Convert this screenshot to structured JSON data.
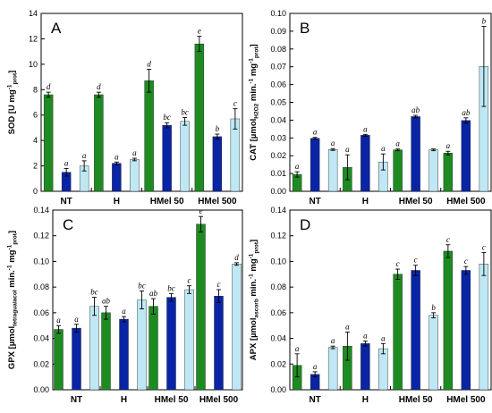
{
  "colors": {
    "series1": "#1e8b22",
    "series2": "#0a24a6",
    "series3": "#bfe8f4"
  },
  "chart_data": [
    {
      "type": "bar",
      "panel": "A",
      "ylabel_parts": [
        {
          "t": "SOD [U mg",
          "s": ""
        },
        {
          "t": "-1",
          "s": "sup"
        },
        {
          "t": "prot",
          "s": "sub"
        },
        {
          "t": "]",
          "s": ""
        }
      ],
      "ylim": [
        0,
        14
      ],
      "yticks": [
        "0",
        "2",
        "4",
        "6",
        "8",
        "10",
        "12",
        "14"
      ],
      "grid": false,
      "categories": [
        "NT",
        "H",
        "HMel 50",
        "HMel 500"
      ],
      "series": [
        {
          "values": [
            7.6,
            7.6,
            8.7,
            11.6
          ],
          "errors": [
            0.2,
            0.2,
            0.9,
            0.6
          ],
          "letters": [
            "d",
            "d",
            "d",
            "e"
          ]
        },
        {
          "values": [
            1.5,
            2.2,
            5.2,
            4.3
          ],
          "errors": [
            0.3,
            0.1,
            0.2,
            0.2
          ],
          "letters": [
            "a",
            "a",
            "bc",
            "b"
          ]
        },
        {
          "values": [
            2.0,
            2.5,
            5.5,
            5.7
          ],
          "errors": [
            0.4,
            0.1,
            0.3,
            0.8
          ],
          "letters": [
            "a",
            "a",
            "bc",
            "c"
          ]
        }
      ]
    },
    {
      "type": "bar",
      "panel": "B",
      "ylabel_parts": [
        {
          "t": "CAT [µmol",
          "s": ""
        },
        {
          "t": "H2O2",
          "s": "sub"
        },
        {
          "t": " min.",
          "s": ""
        },
        {
          "t": "-1",
          "s": "sup"
        },
        {
          "t": " mg",
          "s": ""
        },
        {
          "t": "-1",
          "s": "sup"
        },
        {
          "t": "prot",
          "s": "sub"
        },
        {
          "t": "]",
          "s": ""
        }
      ],
      "ylim": [
        0,
        0.1
      ],
      "yticks": [
        "0.00",
        "0.01",
        "0.02",
        "0.03",
        "0.04",
        "0.05",
        "0.06",
        "0.07",
        "0.08",
        "0.09",
        "0.10"
      ],
      "grid": false,
      "categories": [
        "NT",
        "H",
        "HMel 50",
        "HMel 500"
      ],
      "series": [
        {
          "values": [
            0.0095,
            0.0135,
            0.0233,
            0.0215
          ],
          "errors": [
            0.0015,
            0.007,
            0.0005,
            0.001
          ],
          "letters": [
            "a",
            "a",
            "a",
            "a"
          ]
        },
        {
          "values": [
            0.0298,
            0.0315,
            0.042,
            0.0398
          ],
          "errors": [
            0.0005,
            0.0005,
            0.0007,
            0.0015
          ],
          "letters": [
            "a",
            "a",
            "ab",
            "ab"
          ]
        },
        {
          "values": [
            0.0235,
            0.0165,
            0.0233,
            0.0702
          ],
          "errors": [
            0.0005,
            0.0045,
            0.0005,
            0.0225
          ],
          "letters": [
            "a",
            "a",
            "",
            "b"
          ]
        }
      ]
    },
    {
      "type": "bar",
      "panel": "C",
      "ylabel_parts": [
        {
          "t": "GPX [µmol",
          "s": ""
        },
        {
          "t": "tetraguaiacol",
          "s": "sub"
        },
        {
          "t": " min.",
          "s": ""
        },
        {
          "t": "-1",
          "s": "sup"
        },
        {
          "t": " mg",
          "s": ""
        },
        {
          "t": "-1",
          "s": "sup"
        },
        {
          "t": "prot",
          "s": "sub"
        },
        {
          "t": "]",
          "s": ""
        }
      ],
      "ylim": [
        0,
        0.14
      ],
      "yticks": [
        "0.00",
        "0.02",
        "0.04",
        "0.06",
        "0.08",
        "0.10",
        "0.12",
        "0.14"
      ],
      "grid": false,
      "categories": [
        "NT",
        "H",
        "HMel 50",
        "HMel 500"
      ],
      "series": [
        {
          "values": [
            0.047,
            0.06,
            0.065,
            0.129
          ],
          "errors": [
            0.003,
            0.005,
            0.006,
            0.006
          ],
          "letters": [
            "a",
            "ab",
            "ab",
            "e"
          ]
        },
        {
          "values": [
            0.048,
            0.055,
            0.072,
            0.073
          ],
          "errors": [
            0.003,
            0.002,
            0.003,
            0.005
          ],
          "letters": [
            "a",
            "a",
            "bc",
            "c"
          ]
        },
        {
          "values": [
            0.065,
            0.07,
            0.078,
            0.098
          ],
          "errors": [
            0.007,
            0.007,
            0.003,
            0.001
          ],
          "letters": [
            "bc",
            "bc",
            "c",
            "d"
          ]
        }
      ]
    },
    {
      "type": "bar",
      "panel": "D",
      "ylabel_parts": [
        {
          "t": "APX [µmol",
          "s": ""
        },
        {
          "t": "ascorb",
          "s": "sub"
        },
        {
          "t": " min.",
          "s": ""
        },
        {
          "t": "-1",
          "s": "sup"
        },
        {
          "t": " mg",
          "s": ""
        },
        {
          "t": "-1",
          "s": "sup"
        },
        {
          "t": "prot",
          "s": "sub"
        },
        {
          "t": "]",
          "s": ""
        }
      ],
      "ylim": [
        0,
        0.14
      ],
      "yticks": [
        "0.00",
        "0.02",
        "0.04",
        "0.06",
        "0.08",
        "0.10",
        "0.12",
        "0.14"
      ],
      "grid": false,
      "categories": [
        "NT",
        "H",
        "HMel 50",
        "HMel 500"
      ],
      "series": [
        {
          "values": [
            0.019,
            0.034,
            0.09,
            0.108
          ],
          "errors": [
            0.009,
            0.011,
            0.004,
            0.005
          ],
          "letters": [
            "a",
            "a",
            "c",
            "c"
          ]
        },
        {
          "values": [
            0.012,
            0.036,
            0.093,
            0.093
          ],
          "errors": [
            0.002,
            0.002,
            0.004,
            0.003
          ],
          "letters": [
            "a",
            "a",
            "c",
            "c"
          ]
        },
        {
          "values": [
            0.033,
            0.032,
            0.058,
            0.098
          ],
          "errors": [
            0.001,
            0.004,
            0.002,
            0.009
          ],
          "letters": [
            "a",
            "a",
            "b",
            "c"
          ]
        }
      ]
    }
  ]
}
